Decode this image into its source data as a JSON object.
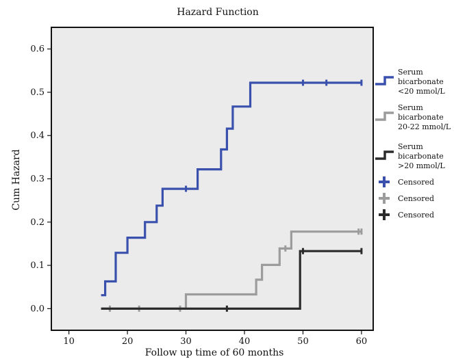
{
  "chart_data": {
    "type": "line",
    "title": "Hazard Function",
    "xlabel": "Follow up time of 60 months",
    "ylabel": "Cum Hazard",
    "xlim": [
      7,
      62
    ],
    "ylim": [
      -0.05,
      0.65
    ],
    "xticks": [
      10,
      20,
      30,
      40,
      50,
      60
    ],
    "yticks": [
      0.0,
      0.1,
      0.2,
      0.3,
      0.4,
      0.5,
      0.6
    ],
    "ytick_labels": [
      "0.0",
      "0.1",
      "0.2",
      "0.3",
      "0.4",
      "0.5",
      "0.6"
    ],
    "grid": false,
    "plot_background": "#ebebeb",
    "legend_position": "right",
    "series": [
      {
        "name": "Serum bicarbonate <20 mmol/L",
        "label_lines": [
          "Serum",
          "bicarbonate",
          "<20 mmol/L"
        ],
        "color": "#3a50ad",
        "steps": [
          [
            15.5,
            0.031
          ],
          [
            16.2,
            0.063
          ],
          [
            18.0,
            0.129
          ],
          [
            20.0,
            0.164
          ],
          [
            23.0,
            0.2
          ],
          [
            25.0,
            0.238
          ],
          [
            26.0,
            0.277
          ],
          [
            32.0,
            0.322
          ],
          [
            36.0,
            0.368
          ],
          [
            37.0,
            0.416
          ],
          [
            38.0,
            0.467
          ],
          [
            41.0,
            0.522
          ],
          [
            60.0,
            0.522
          ]
        ],
        "censored": [
          [
            30.0,
            0.277
          ],
          [
            50.0,
            0.522
          ],
          [
            54.0,
            0.522
          ],
          [
            60.0,
            0.522
          ]
        ]
      },
      {
        "name": "Serum bicarbonate 20-22 mmol/L",
        "label_lines": [
          "Serum",
          "bicarbonate",
          "20-22 mmol/L"
        ],
        "color": "#9c9c9c",
        "steps": [
          [
            15.5,
            0.0
          ],
          [
            30.0,
            0.033
          ],
          [
            42.0,
            0.067
          ],
          [
            43.0,
            0.101
          ],
          [
            46.0,
            0.139
          ],
          [
            48.0,
            0.178
          ],
          [
            60.0,
            0.178
          ]
        ],
        "censored": [
          [
            17.0,
            0.0
          ],
          [
            22.0,
            0.0
          ],
          [
            29.0,
            0.0
          ],
          [
            47.0,
            0.139
          ],
          [
            59.5,
            0.178
          ],
          [
            60.0,
            0.178
          ]
        ]
      },
      {
        "name": "Serum bicarbonate >20 mmol/L",
        "label_lines": [
          "Serum",
          "bicarbonate",
          ">20 mmol/L"
        ],
        "color": "#2b2b2b",
        "steps": [
          [
            15.5,
            0.0
          ],
          [
            49.5,
            0.133
          ],
          [
            60.0,
            0.133
          ]
        ],
        "censored": [
          [
            37.0,
            0.0
          ],
          [
            50.0,
            0.133
          ],
          [
            60.0,
            0.133
          ]
        ]
      }
    ],
    "censored_legend": [
      {
        "label": "Censored",
        "color": "#3a50ad"
      },
      {
        "label": "Censored",
        "color": "#9c9c9c"
      },
      {
        "label": "Censored",
        "color": "#2b2b2b"
      }
    ]
  }
}
